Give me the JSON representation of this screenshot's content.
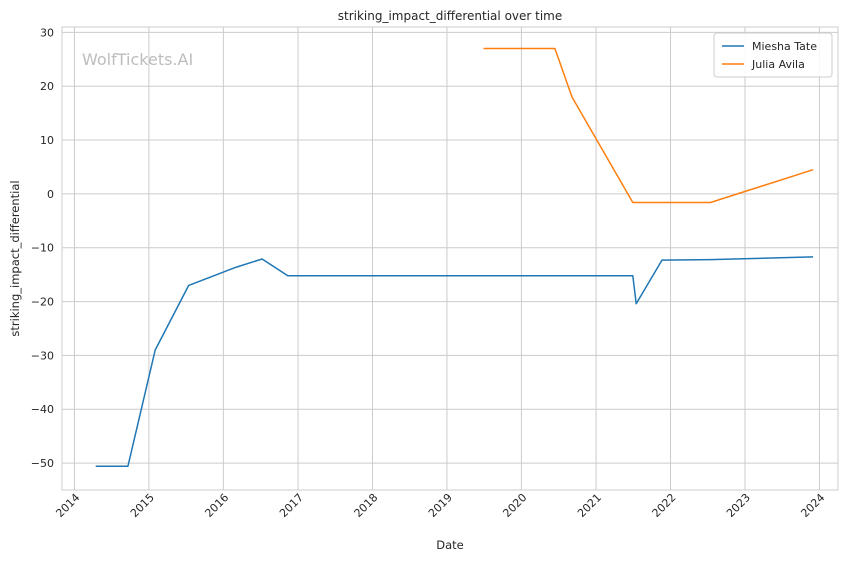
{
  "chart_data": {
    "type": "line",
    "title": "striking_impact_differential over time",
    "xlabel": "Date",
    "ylabel": "striking_impact_differential",
    "watermark": "WolfTickets.AI",
    "x_ticks": [
      "2014",
      "2015",
      "2016",
      "2017",
      "2018",
      "2019",
      "2020",
      "2021",
      "2022",
      "2023",
      "2024"
    ],
    "y_ticks": [
      30,
      20,
      10,
      0,
      -10,
      -20,
      -30,
      -40,
      -50
    ],
    "y_tick_labels": [
      "30",
      "20",
      "10",
      "0",
      "−10",
      "−20",
      "−30",
      "−40",
      "−50"
    ],
    "xlim": [
      "2013-11-01",
      "2024-04-01"
    ],
    "ylim": [
      -55,
      31
    ],
    "grid": true,
    "legend_position": "top-right",
    "series": [
      {
        "name": "Miesha Tate",
        "color": "#1f77b4",
        "x": [
          "2014-04-15",
          "2014-09-20",
          "2015-02-01",
          "2015-07-15",
          "2016-03-05",
          "2016-07-09",
          "2016-11-12",
          "2021-06-30",
          "2021-07-17",
          "2021-11-20",
          "2022-07-16",
          "2023-12-01"
        ],
        "y": [
          -50.6,
          -50.6,
          -29.0,
          -17.0,
          -13.6,
          -12.1,
          -15.2,
          -15.2,
          -20.4,
          -12.3,
          -12.2,
          -11.7
        ]
      },
      {
        "name": "Julia Avila",
        "color": "#ff7f0e",
        "x": [
          "2019-06-29",
          "2020-06-13",
          "2020-09-05",
          "2021-06-30",
          "2022-07-16",
          "2023-12-01"
        ],
        "y": [
          27.0,
          27.0,
          18.0,
          -1.6,
          -1.6,
          4.5
        ]
      }
    ]
  }
}
